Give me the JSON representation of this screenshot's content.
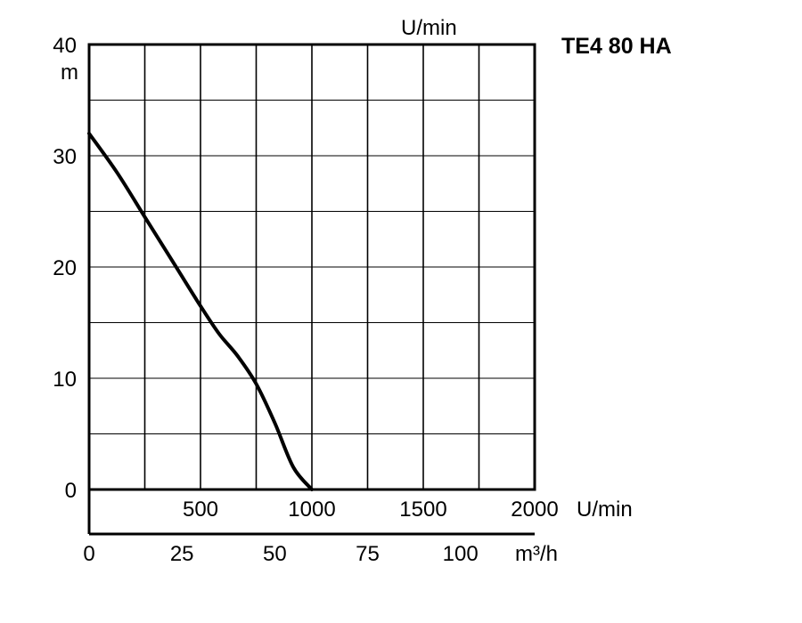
{
  "chart_data": {
    "type": "line",
    "title": "TE4 80 HA",
    "ylabel": "m",
    "ylim": [
      0,
      40
    ],
    "yticks": [
      "0",
      "10",
      "20",
      "30",
      "40"
    ],
    "top_axis_label": "U/min",
    "rpm_axis": {
      "ticks": [
        "500",
        "1000",
        "1500",
        "2000"
      ],
      "unit": "U/min",
      "range": [
        0,
        2000
      ]
    },
    "flow_axis": {
      "ticks": [
        "0",
        "25",
        "50",
        "75",
        "100"
      ],
      "unit": "m³/h",
      "range": [
        0,
        120
      ]
    },
    "series": [
      {
        "x": [
          0,
          7.5,
          15,
          22.5,
          30,
          35,
          40,
          45,
          50,
          55,
          60
        ],
        "y": [
          32,
          28.5,
          24.5,
          20.5,
          16.5,
          14,
          12,
          9.5,
          6,
          2,
          0
        ]
      }
    ]
  }
}
